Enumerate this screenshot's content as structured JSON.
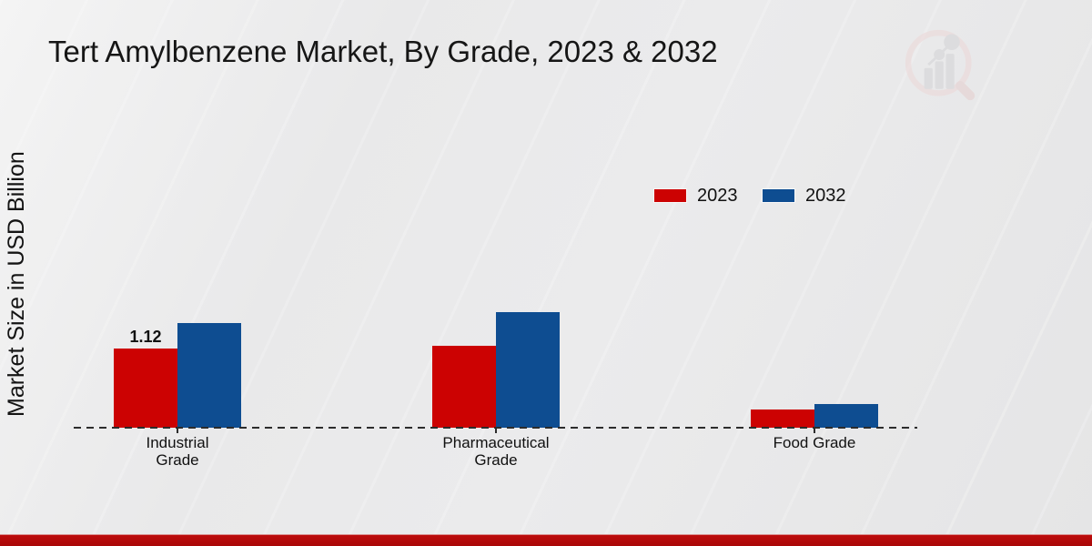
{
  "chart": {
    "title": "Tert Amylbenzene Market, By Grade, 2023 & 2032",
    "y_axis_label": "Market Size in USD Billion"
  },
  "legend": {
    "position": "top-right",
    "items": [
      {
        "label": "2023",
        "color": "#cc0202"
      },
      {
        "label": "2032",
        "color": "#0e4d91"
      }
    ]
  },
  "chart_data": {
    "type": "bar",
    "title": "Tert Amylbenzene Market, By Grade, 2023 & 2032",
    "xlabel": "",
    "ylabel": "Market Size in USD Billion",
    "categories": [
      "Industrial Grade",
      "Pharmaceutical Grade",
      "Food Grade"
    ],
    "category_label_lines": [
      [
        "Industrial",
        "Grade"
      ],
      [
        "Pharmaceutical",
        "Grade"
      ],
      [
        "Food Grade"
      ]
    ],
    "series": [
      {
        "name": "2023",
        "color": "#cc0202",
        "values": [
          1.12,
          1.16,
          0.26
        ]
      },
      {
        "name": "2032",
        "color": "#0e4d91",
        "values": [
          1.48,
          1.64,
          0.34
        ]
      }
    ],
    "visible_data_labels": [
      {
        "series": "2023",
        "category": "Industrial Grade",
        "text": "1.12"
      }
    ],
    "gridlines": false,
    "y_axis_tick_labels_visible": false,
    "baseline_style": "dashed",
    "legend_position": "top-right"
  },
  "branding": {
    "watermark_icon": "magnifier-bar-chart-logo",
    "footer_bar_color": "#b30a0a"
  },
  "colors": {
    "background": "#e9e9ea",
    "baseline": "#2c2c2c",
    "text": "#111111"
  }
}
